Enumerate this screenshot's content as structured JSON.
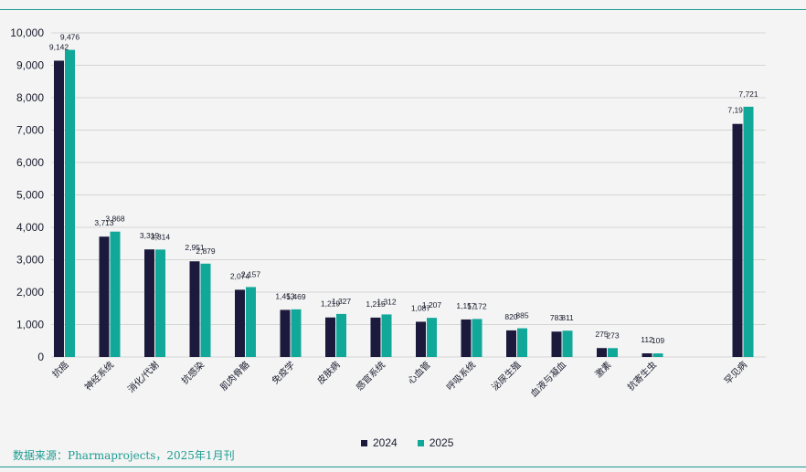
{
  "colors": {
    "s2024": "#1b1a3d",
    "s2025": "#11a89a",
    "grid": "#d4d6d4",
    "text": "#1b1b2f",
    "accent": "#1d9c92"
  },
  "source": "数据来源：Pharmaprojects，2025年1月刊",
  "chart_data": {
    "type": "bar",
    "categories": [
      "抗癌",
      "神经系统",
      "消化/代谢",
      "抗感染",
      "肌肉骨骼",
      "免疫学",
      "皮肤病",
      "感官系统",
      "心血管",
      "呼吸系统",
      "泌尿生殖",
      "血液与凝血",
      "激素",
      "抗寄生虫",
      "",
      "罕见病"
    ],
    "series": [
      {
        "name": "2024",
        "values": [
          9142,
          3713,
          3319,
          2951,
          2074,
          1453,
          1219,
          1215,
          1087,
          1157,
          820,
          783,
          275,
          112,
          null,
          7191
        ],
        "labels": [
          "9,142",
          "3,713",
          "3,319",
          "2,951",
          "2,074",
          "1,453",
          "1,219",
          "1,215",
          "1,087",
          "1,157",
          "820",
          "783",
          "275",
          "112",
          "",
          "7,191"
        ]
      },
      {
        "name": "2025",
        "values": [
          9476,
          3868,
          3314,
          2879,
          2157,
          1469,
          1327,
          1312,
          1207,
          1172,
          885,
          811,
          273,
          109,
          null,
          7721
        ],
        "labels": [
          "9,476",
          "3,868",
          "3,314",
          "2,879",
          "2,157",
          "1,469",
          "1,327",
          "1,312",
          "1,207",
          "1,172",
          "885",
          "811",
          "273",
          "109",
          "",
          "7,721"
        ]
      }
    ],
    "yticks": [
      "0",
      "1,000",
      "2,000",
      "3,000",
      "4,000",
      "5,000",
      "6,000",
      "7,000",
      "8,000",
      "9,000",
      "10,000"
    ],
    "ylim": [
      0,
      10000
    ],
    "grid": true,
    "legend_position": "bottom-center"
  }
}
